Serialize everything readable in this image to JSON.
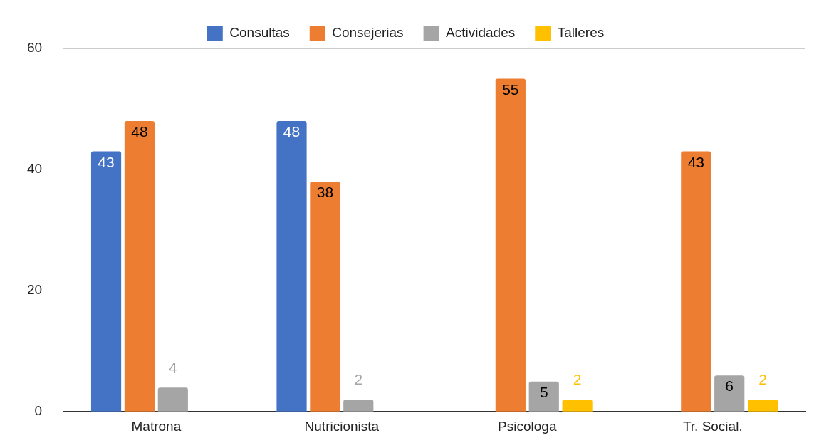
{
  "chart_data": {
    "type": "bar",
    "categories": [
      "Matrona",
      "Nutricionista",
      "Psicologa",
      "Tr. Social."
    ],
    "series": [
      {
        "name": "Consultas",
        "color": "#4472c4",
        "values": [
          43,
          48,
          null,
          null
        ]
      },
      {
        "name": "Consejerias",
        "color": "#ed7d31",
        "values": [
          48,
          38,
          55,
          43
        ]
      },
      {
        "name": "Actividades",
        "color": "#a5a5a5",
        "values": [
          4,
          2,
          5,
          6
        ]
      },
      {
        "name": "Talleres",
        "color": "#ffc000",
        "values": [
          null,
          null,
          2,
          2
        ]
      }
    ],
    "ylim": [
      0,
      60
    ],
    "yticks": [
      0,
      20,
      40,
      60
    ],
    "grid": "y",
    "legend": "top",
    "data_labels": true
  }
}
